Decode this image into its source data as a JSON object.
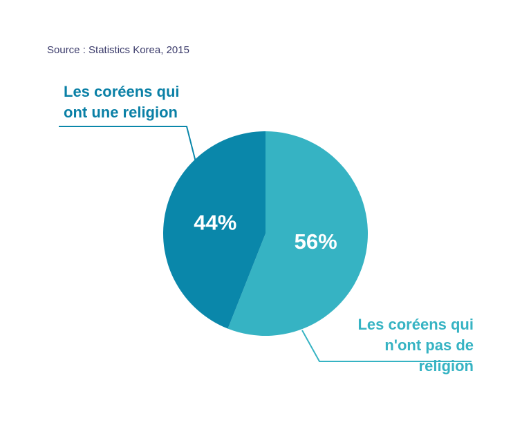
{
  "chart_data": {
    "type": "pie",
    "source": "Source : Statistics Korea, 2015",
    "categories": [
      "Les coréens qui n'ont pas de religion",
      "Les coréens qui ont une religion"
    ],
    "values": [
      56,
      44
    ],
    "value_labels": [
      "56%",
      "44%"
    ],
    "colors": [
      "#36b3c3",
      "#0a87aa"
    ]
  }
}
